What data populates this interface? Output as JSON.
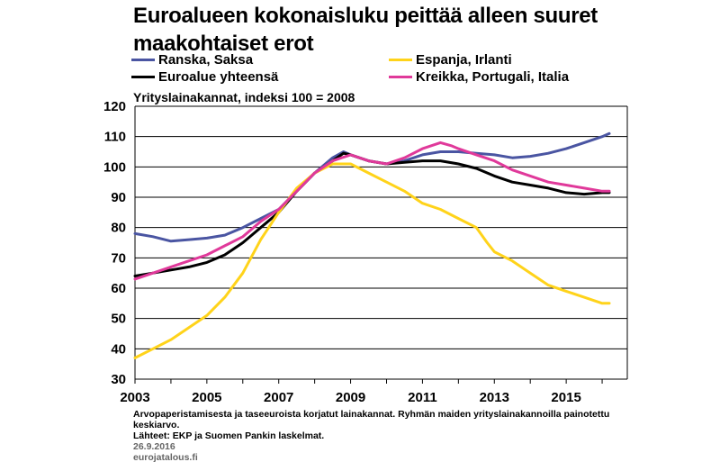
{
  "header": {
    "title_line1": "Euroalueen kokonaisluku peittää alleen suuret",
    "title_line2": "maakohtaiset erot",
    "subtitle": "Yrityslainakannat,  indeksi 100 = 2008"
  },
  "footer": {
    "note": "Arvopaperistamisesta  ja  taseeuroista korjatut lainakannat.  Ryhmän maiden  yrityslainakannoilla painotettu keskiarvo.",
    "sources": "Lähteet:  EKP ja Suomen  Pankin laskelmat.",
    "date": "26.9.2016",
    "id": "eurojatalous.fi"
  },
  "chart_data": {
    "type": "line",
    "title": "Euroalueen kokonaisluku peittää alleen suuret maakohtaiset erot",
    "subtitle": "Yrityslainakannat,  indeksi 100 = 2008",
    "xlabel": "",
    "ylabel": "",
    "xlim": [
      2003,
      2016.7
    ],
    "ylim": [
      30,
      120
    ],
    "yticks": [
      30,
      40,
      50,
      60,
      70,
      80,
      90,
      100,
      110,
      120
    ],
    "xticks": [
      "2003",
      "2005",
      "2007",
      "2009",
      "2011",
      "2013",
      "2015"
    ],
    "grid": true,
    "legend_position": "top",
    "series": [
      {
        "name": "Ranska, Saksa",
        "color": "#4a55a2",
        "points": [
          [
            2003.0,
            78
          ],
          [
            2003.5,
            77
          ],
          [
            2004.0,
            75.5
          ],
          [
            2004.5,
            76
          ],
          [
            2005.0,
            76.5
          ],
          [
            2005.5,
            77.5
          ],
          [
            2006.0,
            80
          ],
          [
            2006.5,
            83
          ],
          [
            2007.0,
            86
          ],
          [
            2007.5,
            92
          ],
          [
            2008.0,
            98
          ],
          [
            2008.5,
            103
          ],
          [
            2008.8,
            105
          ],
          [
            2009.0,
            104
          ],
          [
            2009.5,
            102
          ],
          [
            2010.0,
            101
          ],
          [
            2010.5,
            102
          ],
          [
            2011.0,
            104
          ],
          [
            2011.5,
            105
          ],
          [
            2012.0,
            105
          ],
          [
            2012.5,
            104.5
          ],
          [
            2013.0,
            104
          ],
          [
            2013.5,
            103
          ],
          [
            2014.0,
            103.5
          ],
          [
            2014.5,
            104.5
          ],
          [
            2015.0,
            106
          ],
          [
            2015.5,
            108
          ],
          [
            2016.0,
            110
          ],
          [
            2016.2,
            111
          ]
        ]
      },
      {
        "name": "Euroalue yhteensä",
        "color": "#000000",
        "points": [
          [
            2003.0,
            64
          ],
          [
            2003.5,
            65
          ],
          [
            2004.0,
            66
          ],
          [
            2004.5,
            67
          ],
          [
            2005.0,
            68.5
          ],
          [
            2005.5,
            71
          ],
          [
            2006.0,
            75
          ],
          [
            2006.5,
            80
          ],
          [
            2007.0,
            85
          ],
          [
            2007.5,
            92
          ],
          [
            2008.0,
            98
          ],
          [
            2008.5,
            102
          ],
          [
            2008.8,
            104.5
          ],
          [
            2009.0,
            104
          ],
          [
            2009.5,
            102
          ],
          [
            2010.0,
            101
          ],
          [
            2010.5,
            101.5
          ],
          [
            2011.0,
            102
          ],
          [
            2011.5,
            102
          ],
          [
            2012.0,
            101
          ],
          [
            2012.5,
            99.5
          ],
          [
            2013.0,
            97
          ],
          [
            2013.5,
            95
          ],
          [
            2014.0,
            94
          ],
          [
            2014.5,
            93
          ],
          [
            2015.0,
            91.5
          ],
          [
            2015.5,
            91
          ],
          [
            2016.0,
            91.5
          ],
          [
            2016.2,
            91.5
          ]
        ]
      },
      {
        "name": "Espanja, Irlanti",
        "color": "#ffd31a",
        "points": [
          [
            2003.0,
            37
          ],
          [
            2003.5,
            40
          ],
          [
            2004.0,
            43
          ],
          [
            2004.5,
            47
          ],
          [
            2005.0,
            51
          ],
          [
            2005.5,
            57
          ],
          [
            2006.0,
            65
          ],
          [
            2006.5,
            76
          ],
          [
            2007.0,
            85
          ],
          [
            2007.5,
            93
          ],
          [
            2008.0,
            98
          ],
          [
            2008.5,
            101
          ],
          [
            2009.0,
            101
          ],
          [
            2009.5,
            98
          ],
          [
            2010.0,
            95
          ],
          [
            2010.5,
            92
          ],
          [
            2011.0,
            88
          ],
          [
            2011.5,
            86
          ],
          [
            2012.0,
            83
          ],
          [
            2012.5,
            80
          ],
          [
            2012.8,
            75
          ],
          [
            2013.0,
            72
          ],
          [
            2013.5,
            69
          ],
          [
            2014.0,
            65
          ],
          [
            2014.5,
            61
          ],
          [
            2015.0,
            59
          ],
          [
            2015.5,
            57
          ],
          [
            2016.0,
            55
          ],
          [
            2016.2,
            55
          ]
        ]
      },
      {
        "name": "Kreikka, Portugali, Italia",
        "color": "#e0399a",
        "points": [
          [
            2003.0,
            63
          ],
          [
            2003.5,
            65
          ],
          [
            2004.0,
            67
          ],
          [
            2004.5,
            69
          ],
          [
            2005.0,
            71
          ],
          [
            2005.5,
            74
          ],
          [
            2006.0,
            77
          ],
          [
            2006.5,
            82
          ],
          [
            2007.0,
            86
          ],
          [
            2007.5,
            92
          ],
          [
            2008.0,
            98
          ],
          [
            2008.5,
            102
          ],
          [
            2009.0,
            104
          ],
          [
            2009.5,
            102
          ],
          [
            2010.0,
            101
          ],
          [
            2010.5,
            103
          ],
          [
            2011.0,
            106
          ],
          [
            2011.5,
            108
          ],
          [
            2011.8,
            107
          ],
          [
            2012.0,
            106
          ],
          [
            2012.5,
            104
          ],
          [
            2013.0,
            102
          ],
          [
            2013.5,
            99
          ],
          [
            2014.0,
            97
          ],
          [
            2014.5,
            95
          ],
          [
            2015.0,
            94
          ],
          [
            2015.5,
            93
          ],
          [
            2016.0,
            92
          ],
          [
            2016.2,
            92
          ]
        ]
      }
    ]
  }
}
